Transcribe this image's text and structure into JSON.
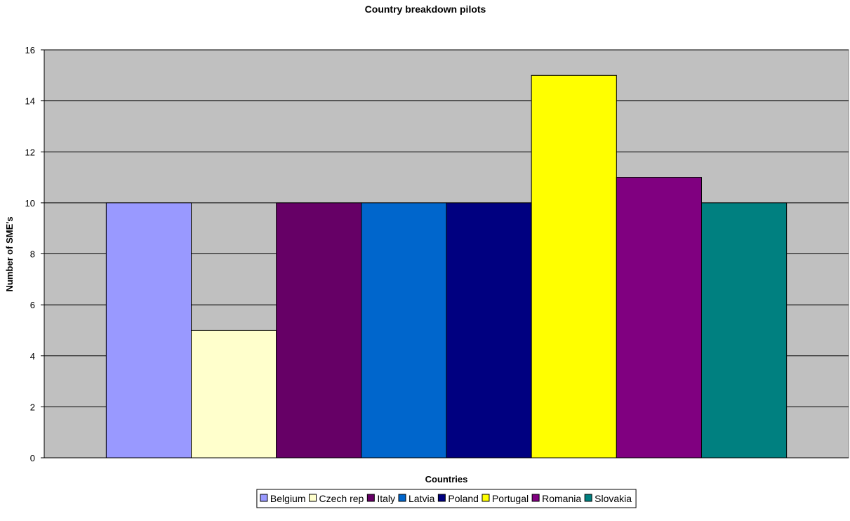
{
  "chart_data": {
    "type": "bar",
    "title": "Country breakdown pilots",
    "xlabel": "Countries",
    "ylabel": "Number of SME's",
    "ylim": [
      0,
      16
    ],
    "yticks": [
      0,
      2,
      4,
      6,
      8,
      10,
      12,
      14,
      16
    ],
    "grid": true,
    "legend_position": "bottom",
    "plot_background": "#C0C0C0",
    "series": [
      {
        "name": "Belgium",
        "value": 10,
        "color": "#9999FF"
      },
      {
        "name": "Czech rep",
        "value": 5,
        "color": "#FFFFCC"
      },
      {
        "name": "Italy",
        "value": 10,
        "color": "#660066"
      },
      {
        "name": "Latvia",
        "value": 10,
        "color": "#0066CC"
      },
      {
        "name": "Poland",
        "value": 10,
        "color": "#000080"
      },
      {
        "name": "Portugal",
        "value": 15,
        "color": "#FFFF00"
      },
      {
        "name": "Romania",
        "value": 11,
        "color": "#800080"
      },
      {
        "name": "Slovakia",
        "value": 10,
        "color": "#008080"
      }
    ]
  }
}
